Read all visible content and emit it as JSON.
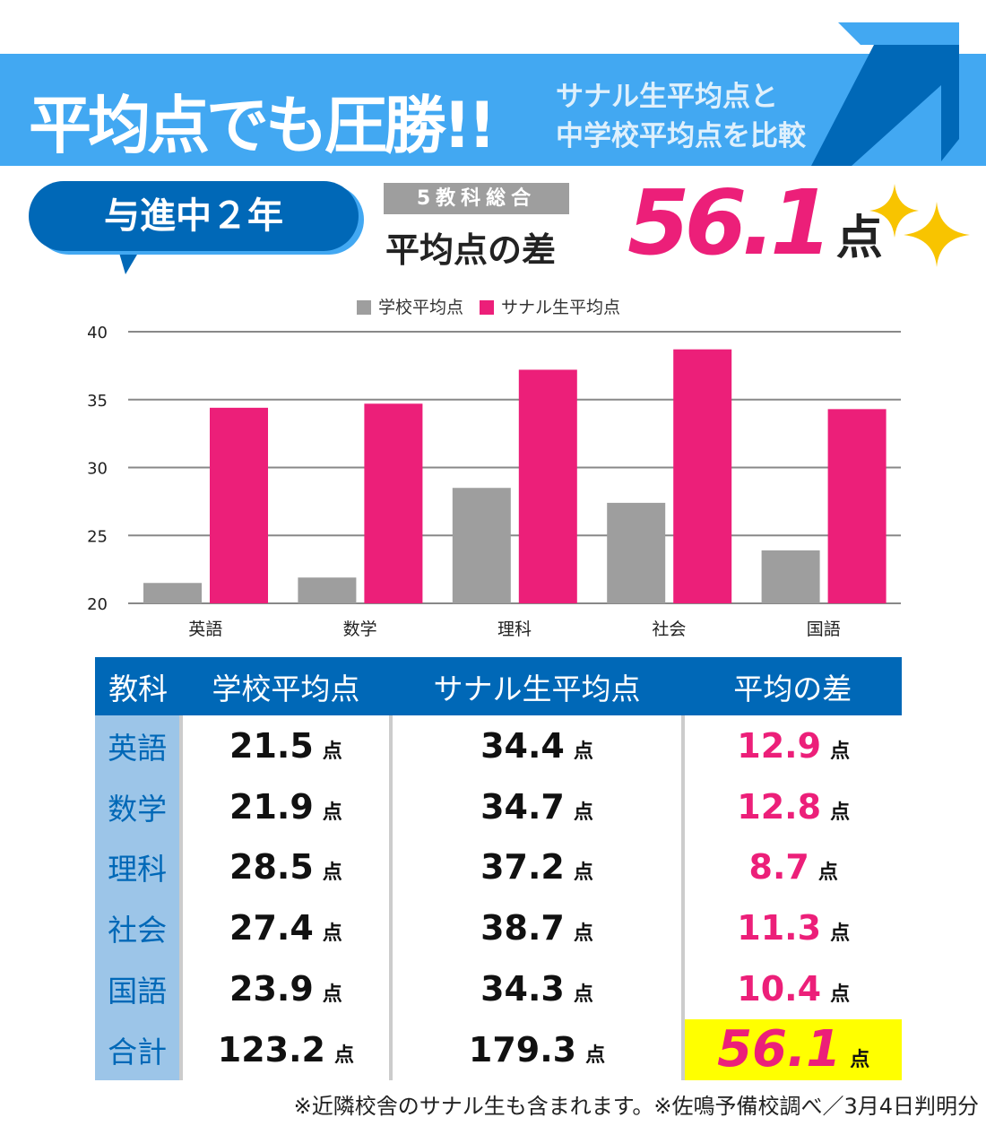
{
  "header": {
    "title": "平均点でも圧勝!!",
    "subtitle_line1": "サナル生平均点と",
    "subtitle_line2": "中学校平均点を比較"
  },
  "grade_badge": "与進中２年",
  "total_tag": "5教科総合",
  "total_label": "平均点の差",
  "total_diff": "56.1",
  "unit": "点",
  "colors": {
    "school": "#9e9e9e",
    "sanaru": "#ec1f79",
    "blue": "#0068b7",
    "light_blue": "#42a8f2"
  },
  "chart_data": {
    "type": "bar",
    "categories": [
      "英語",
      "数学",
      "理科",
      "社会",
      "国語"
    ],
    "series": [
      {
        "name": "学校平均点",
        "values": [
          21.5,
          21.9,
          28.5,
          27.4,
          23.9
        ]
      },
      {
        "name": "サナル生平均点",
        "values": [
          34.4,
          34.7,
          37.2,
          38.7,
          34.3
        ]
      }
    ],
    "ylim": [
      20,
      40
    ],
    "yticks": [
      "20",
      "25",
      "30",
      "35",
      "40"
    ],
    "grid": true,
    "legend": "top"
  },
  "table": {
    "headers": [
      "教科",
      "学校平均点",
      "サナル生平均点",
      "平均の差"
    ],
    "rows": [
      [
        "英語",
        "21.5",
        "34.4",
        "12.9"
      ],
      [
        "数学",
        "21.9",
        "34.7",
        "12.8"
      ],
      [
        "理科",
        "28.5",
        "37.2",
        "8.7"
      ],
      [
        "社会",
        "27.4",
        "38.7",
        "11.3"
      ],
      [
        "国語",
        "23.9",
        "34.3",
        "10.4"
      ],
      [
        "合計",
        "123.2",
        "179.3",
        "56.1"
      ]
    ]
  },
  "footnote": "※近隣校舎のサナル生も含まれます。※佐鳴予備校調べ／3月4日判明分"
}
